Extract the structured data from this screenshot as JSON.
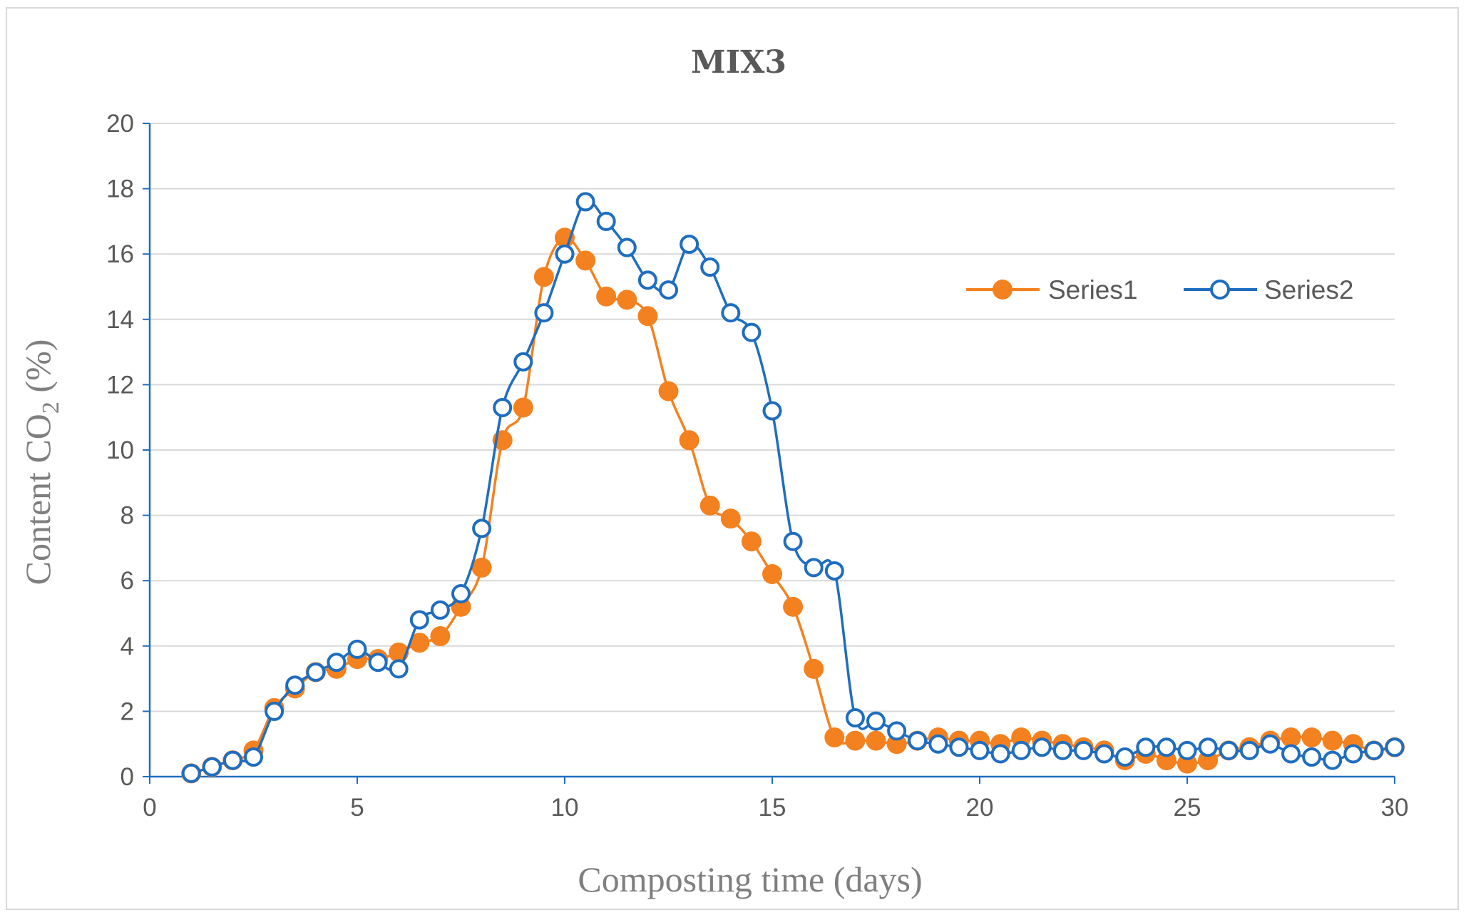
{
  "chart_data": {
    "type": "line",
    "title": "MIX3",
    "xlabel": "Composting time (days)",
    "ylabel": {
      "prefix": "Content CO",
      "subscript": "2",
      "suffix": " (%)"
    },
    "xlim": [
      0,
      30
    ],
    "ylim": [
      0,
      20
    ],
    "x_ticks": [
      "0",
      "5",
      "10",
      "15",
      "20",
      "25",
      "30"
    ],
    "y_ticks": [
      "0",
      "2",
      "4",
      "6",
      "8",
      "10",
      "12",
      "14",
      "16",
      "18",
      "20"
    ],
    "grid": "horizontal",
    "legend_position": "top-right",
    "x": [
      1,
      1.5,
      2,
      2.5,
      3,
      3.5,
      4,
      4.5,
      5,
      5.5,
      6,
      6.5,
      7,
      7.5,
      8,
      8.5,
      9,
      9.5,
      10,
      10.5,
      11,
      11.5,
      12,
      12.5,
      13,
      13.5,
      14,
      14.5,
      15,
      15.5,
      16,
      16.5,
      17,
      17.5,
      18,
      18.5,
      19,
      19.5,
      20,
      20.5,
      21,
      21.5,
      22,
      22.5,
      23,
      23.5,
      24,
      24.5,
      25,
      25.5,
      26,
      26.5,
      27,
      27.5,
      28,
      28.5,
      29,
      29.5,
      30
    ],
    "series": [
      {
        "name": "Series1",
        "color": "#f4811f",
        "marker": "filled-circle",
        "values": [
          0.1,
          0.3,
          0.5,
          0.8,
          2.1,
          2.7,
          3.2,
          3.3,
          3.6,
          3.6,
          3.8,
          4.1,
          4.3,
          5.2,
          6.4,
          10.3,
          11.3,
          15.3,
          16.5,
          15.8,
          14.7,
          14.6,
          14.1,
          11.8,
          10.3,
          8.3,
          7.9,
          7.2,
          6.2,
          5.2,
          3.3,
          1.2,
          1.1,
          1.1,
          1.0,
          1.1,
          1.2,
          1.1,
          1.1,
          1.0,
          1.2,
          1.1,
          1.0,
          0.9,
          0.8,
          0.5,
          0.7,
          0.5,
          0.4,
          0.5,
          0.8,
          0.9,
          1.1,
          1.2,
          1.2,
          1.1,
          1.0,
          0.8,
          0.9
        ]
      },
      {
        "name": "Series2",
        "color": "#1f6dbf",
        "marker": "open-circle",
        "values": [
          0.1,
          0.3,
          0.5,
          0.6,
          2.0,
          2.8,
          3.2,
          3.5,
          3.9,
          3.5,
          3.3,
          4.8,
          5.1,
          5.6,
          7.6,
          11.3,
          12.7,
          14.2,
          16.0,
          17.6,
          17.0,
          16.2,
          15.2,
          14.9,
          16.3,
          15.6,
          14.2,
          13.6,
          11.2,
          7.2,
          6.4,
          6.3,
          1.8,
          1.7,
          1.4,
          1.1,
          1.0,
          0.9,
          0.8,
          0.7,
          0.8,
          0.9,
          0.8,
          0.8,
          0.7,
          0.6,
          0.9,
          0.9,
          0.8,
          0.9,
          0.8,
          0.8,
          1.0,
          0.7,
          0.6,
          0.5,
          0.7,
          0.8,
          0.9
        ]
      }
    ]
  }
}
